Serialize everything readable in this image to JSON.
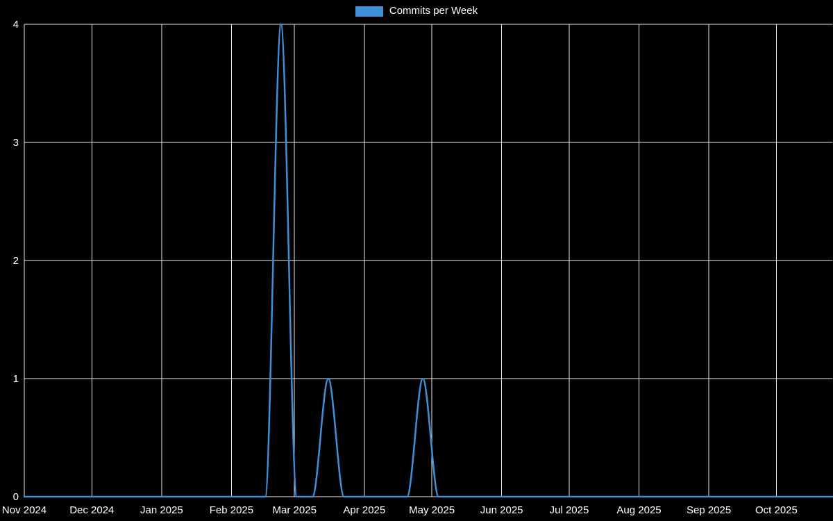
{
  "legend": {
    "label": "Commits per Week",
    "color": "#3d8fd9"
  },
  "chart_data": {
    "type": "line",
    "title": "Commits per Week",
    "xlabel": "",
    "ylabel": "",
    "ylim": [
      0,
      4
    ],
    "y_ticks": [
      0,
      1,
      2,
      3,
      4
    ],
    "x_domain": [
      "2024-11-01",
      "2025-10-26"
    ],
    "grid": true,
    "legend_position": "top-center",
    "background_color": "#000000",
    "grid_color": "#ffffff",
    "text_color": "#ffffff",
    "x_ticks": [
      {
        "date": "2024-11-01",
        "label": "Nov 2024"
      },
      {
        "date": "2024-12-01",
        "label": "Dec 2024"
      },
      {
        "date": "2025-01-01",
        "label": "Jan 2025"
      },
      {
        "date": "2025-02-01",
        "label": "Feb 2025"
      },
      {
        "date": "2025-03-01",
        "label": "Mar 2025"
      },
      {
        "date": "2025-04-01",
        "label": "Apr 2025"
      },
      {
        "date": "2025-05-01",
        "label": "May 2025"
      },
      {
        "date": "2025-06-01",
        "label": "Jun 2025"
      },
      {
        "date": "2025-07-01",
        "label": "Jul 2025"
      },
      {
        "date": "2025-08-01",
        "label": "Aug 2025"
      },
      {
        "date": "2025-09-01",
        "label": "Sep 2025"
      },
      {
        "date": "2025-10-01",
        "label": "Oct 2025"
      }
    ],
    "series": [
      {
        "name": "Commits per Week",
        "color": "#3d8fd9",
        "x": [
          "2024-11-01",
          "2024-11-03",
          "2024-11-10",
          "2024-11-17",
          "2024-11-24",
          "2024-12-01",
          "2024-12-08",
          "2024-12-15",
          "2024-12-22",
          "2024-12-29",
          "2025-01-05",
          "2025-01-12",
          "2025-01-19",
          "2025-01-26",
          "2025-02-02",
          "2025-02-09",
          "2025-02-16",
          "2025-02-23",
          "2025-03-02",
          "2025-03-09",
          "2025-03-16",
          "2025-03-23",
          "2025-03-30",
          "2025-04-06",
          "2025-04-13",
          "2025-04-20",
          "2025-04-27",
          "2025-05-04",
          "2025-05-11",
          "2025-05-18",
          "2025-05-25",
          "2025-06-01",
          "2025-06-08",
          "2025-06-15",
          "2025-06-22",
          "2025-06-29",
          "2025-07-06",
          "2025-07-13",
          "2025-07-20",
          "2025-07-27",
          "2025-08-03",
          "2025-08-10",
          "2025-08-17",
          "2025-08-24",
          "2025-08-31",
          "2025-09-07",
          "2025-09-14",
          "2025-09-21",
          "2025-09-28",
          "2025-10-05",
          "2025-10-12",
          "2025-10-19",
          "2025-10-26"
        ],
        "values": [
          0,
          0,
          0,
          0,
          0,
          0,
          0,
          0,
          0,
          0,
          0,
          0,
          0,
          0,
          0,
          0,
          0,
          4,
          0,
          0,
          1,
          0,
          0,
          0,
          0,
          0,
          1,
          0,
          0,
          0,
          0,
          0,
          0,
          0,
          0,
          0,
          0,
          0,
          0,
          0,
          0,
          0,
          0,
          0,
          0,
          0,
          0,
          0,
          0,
          0,
          0,
          0,
          0
        ]
      }
    ]
  }
}
